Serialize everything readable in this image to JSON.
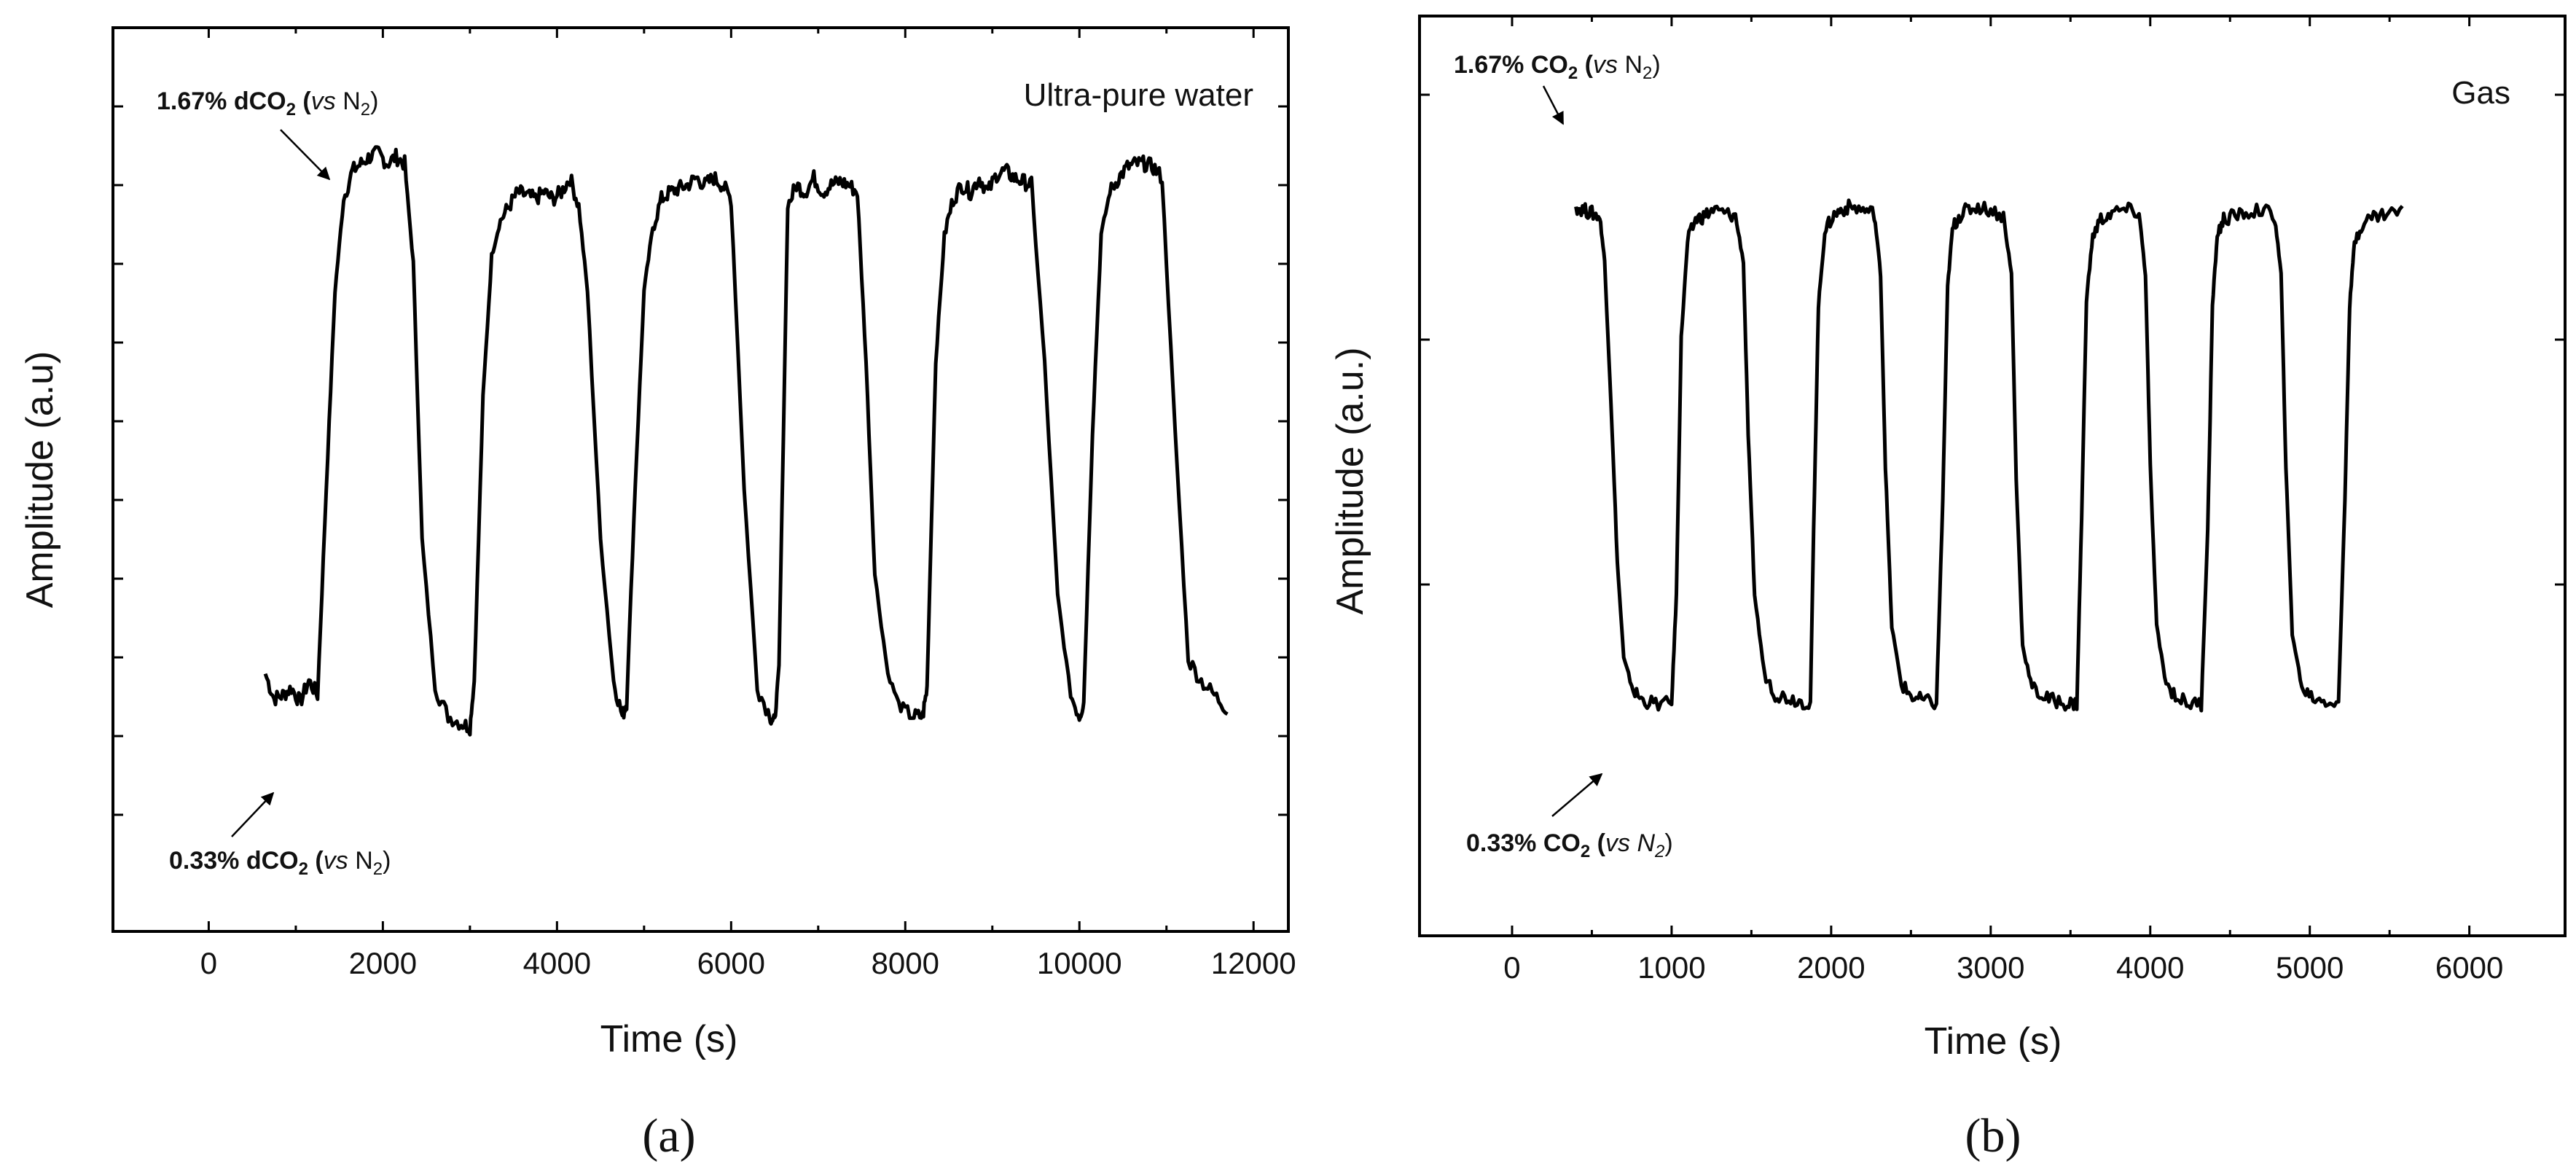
{
  "chart_data": [
    {
      "type": "line",
      "panel": "(a)",
      "title": "",
      "legend": "Ultra-pure water",
      "xlabel": "Time (s)",
      "ylabel": "Amplitude (a.u)",
      "xlim": [
        -1100,
        12400
      ],
      "ylim": [
        0,
        1
      ],
      "xticks": [
        "0",
        "2000",
        "4000",
        "6000",
        "8000",
        "10000",
        "12000"
      ],
      "xtick_values": [
        0,
        2000,
        4000,
        6000,
        8000,
        10000,
        12000
      ],
      "ytick_count": 10,
      "ytick_labels_shown": false,
      "annotations": [
        {
          "prefix": "1.67% dCO",
          "sub": "2",
          "open": " (",
          "italic": "vs",
          "mid": " N",
          "sub2": "2",
          "close": ")"
        },
        {
          "prefix": "0.33% dCO",
          "sub": "2",
          "open": " (",
          "italic": "vs",
          "mid": " N",
          "sub2": "2",
          "close": ")"
        }
      ],
      "low_level": 0.1,
      "high_level": 0.885,
      "series": [
        {
          "name": "Amplitude",
          "x": [
            650,
            750,
            850,
            950,
            1050,
            1150,
            1250,
            1350,
            1450,
            1550,
            1650,
            1750,
            1850,
            1950,
            2050,
            2150,
            2250,
            2350,
            2450,
            2600,
            2750,
            2900,
            3000,
            3050,
            3150,
            3250,
            3350,
            3450,
            3550,
            3650,
            3750,
            3850,
            3950,
            4050,
            4150,
            4250,
            4350,
            4500,
            4650,
            4750,
            4800,
            4900,
            5000,
            5100,
            5200,
            5300,
            5400,
            5500,
            5600,
            5700,
            5800,
            5900,
            6000,
            6150,
            6300,
            6450,
            6500,
            6550,
            6650,
            6750,
            6850,
            6950,
            7050,
            7150,
            7250,
            7350,
            7450,
            7550,
            7650,
            7800,
            7950,
            8100,
            8200,
            8250,
            8350,
            8450,
            8550,
            8650,
            8750,
            8850,
            8950,
            9050,
            9150,
            9250,
            9350,
            9450,
            9600,
            9750,
            9900,
            10000,
            10050,
            10150,
            10250,
            10350,
            10450,
            10550,
            10650,
            10750,
            10850,
            10950,
            11100,
            11250,
            11400,
            11550,
            11700
          ],
          "y": [
            0.16,
            0.125,
            0.13,
            0.14,
            0.12,
            0.15,
            0.13,
            0.42,
            0.7,
            0.83,
            0.87,
            0.88,
            0.89,
            0.895,
            0.88,
            0.89,
            0.88,
            0.74,
            0.35,
            0.14,
            0.1,
            0.09,
            0.085,
            0.15,
            0.55,
            0.75,
            0.8,
            0.82,
            0.84,
            0.835,
            0.83,
            0.84,
            0.83,
            0.84,
            0.86,
            0.82,
            0.7,
            0.35,
            0.15,
            0.1,
            0.12,
            0.43,
            0.7,
            0.79,
            0.83,
            0.84,
            0.845,
            0.85,
            0.86,
            0.85,
            0.86,
            0.85,
            0.83,
            0.42,
            0.14,
            0.1,
            0.09,
            0.17,
            0.82,
            0.85,
            0.84,
            0.86,
            0.84,
            0.85,
            0.855,
            0.85,
            0.84,
            0.6,
            0.3,
            0.16,
            0.11,
            0.1,
            0.1,
            0.14,
            0.6,
            0.78,
            0.83,
            0.85,
            0.84,
            0.86,
            0.84,
            0.865,
            0.87,
            0.86,
            0.855,
            0.85,
            0.6,
            0.27,
            0.13,
            0.1,
            0.12,
            0.5,
            0.78,
            0.84,
            0.86,
            0.875,
            0.88,
            0.88,
            0.875,
            0.86,
            0.5,
            0.18,
            0.15,
            0.13,
            0.11
          ]
        }
      ]
    },
    {
      "type": "line",
      "panel": "(b)",
      "title": "",
      "legend": "Gas",
      "xlabel": "Time (s)",
      "ylabel": "Amplitude (a.u.)",
      "xlim": [
        -580,
        6600
      ],
      "ylim": [
        0,
        1
      ],
      "xticks": [
        "0",
        "1000",
        "2000",
        "3000",
        "4000",
        "5000",
        "6000"
      ],
      "xtick_values": [
        0,
        1000,
        2000,
        3000,
        4000,
        5000,
        6000
      ],
      "ytick_count": 3,
      "ytick_labels_shown": false,
      "annotations": [
        {
          "prefix": "1.67% CO",
          "sub": "2",
          "open": " (",
          "italic": "vs",
          "mid": " N",
          "sub2": "2",
          "close": ")"
        },
        {
          "prefix": "0.33% CO",
          "sub": "2",
          "open": " (",
          "italic": "vs",
          "mid": " N",
          "sub2": "2",
          "close": ")"
        }
      ],
      "low_level": 0.135,
      "high_level": 0.9,
      "series": [
        {
          "name": "Amplitude",
          "x": [
            400,
            450,
            500,
            550,
            580,
            620,
            660,
            700,
            760,
            820,
            900,
            1000,
            1030,
            1060,
            1100,
            1150,
            1200,
            1260,
            1330,
            1400,
            1450,
            1480,
            1520,
            1580,
            1650,
            1720,
            1800,
            1870,
            1890,
            1920,
            1960,
            2010,
            2060,
            2120,
            2200,
            2270,
            2310,
            2340,
            2380,
            2440,
            2510,
            2580,
            2660,
            2700,
            2730,
            2760,
            2800,
            2850,
            2920,
            3000,
            3080,
            3130,
            3160,
            3200,
            3260,
            3330,
            3400,
            3480,
            3540,
            3570,
            3600,
            3640,
            3690,
            3760,
            3850,
            3930,
            3970,
            4000,
            4040,
            4100,
            4170,
            4240,
            4320,
            4360,
            4390,
            4420,
            4460,
            4520,
            4600,
            4700,
            4780,
            4820,
            4850,
            4890,
            4950,
            5020,
            5100,
            5180,
            5220,
            5250,
            5280,
            5330,
            5400,
            5480,
            5580
          ],
          "y": [
            0.905,
            0.9,
            0.895,
            0.89,
            0.82,
            0.6,
            0.35,
            0.2,
            0.15,
            0.135,
            0.13,
            0.13,
            0.3,
            0.7,
            0.85,
            0.885,
            0.89,
            0.9,
            0.895,
            0.89,
            0.82,
            0.55,
            0.3,
            0.18,
            0.145,
            0.14,
            0.135,
            0.13,
            0.4,
            0.75,
            0.865,
            0.89,
            0.9,
            0.905,
            0.9,
            0.895,
            0.8,
            0.5,
            0.25,
            0.16,
            0.14,
            0.135,
            0.13,
            0.45,
            0.78,
            0.87,
            0.89,
            0.9,
            0.905,
            0.9,
            0.89,
            0.8,
            0.48,
            0.22,
            0.155,
            0.14,
            0.135,
            0.13,
            0.13,
            0.42,
            0.76,
            0.86,
            0.885,
            0.895,
            0.9,
            0.895,
            0.8,
            0.5,
            0.25,
            0.16,
            0.14,
            0.13,
            0.13,
            0.4,
            0.75,
            0.86,
            0.885,
            0.89,
            0.895,
            0.9,
            0.89,
            0.8,
            0.5,
            0.24,
            0.155,
            0.14,
            0.135,
            0.13,
            0.45,
            0.75,
            0.85,
            0.88,
            0.89,
            0.895,
            0.9
          ]
        }
      ]
    }
  ]
}
